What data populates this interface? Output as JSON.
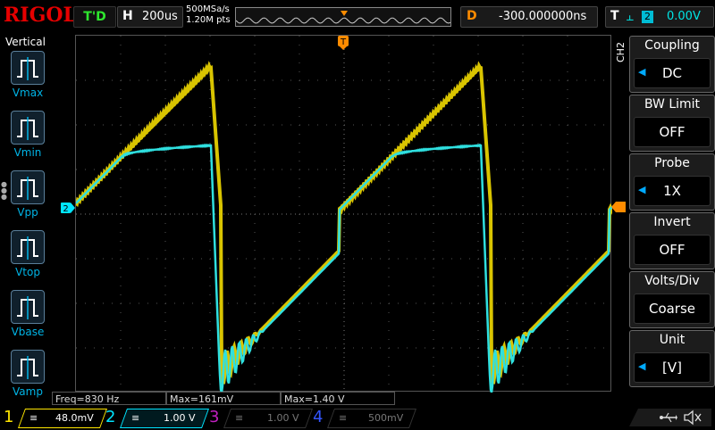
{
  "top": {
    "logo": "RIGOL",
    "trigger_status": "T'D",
    "horizontal_key": "H",
    "timebase": "200us",
    "sample_rate": "500MSa/s",
    "memory_depth": "1.20M pts",
    "delay_key": "D",
    "delay_value": "-300.000000ns",
    "trigger_key": "T",
    "trigger_edge": "⫠",
    "trigger_source": "2",
    "trigger_level": "0.00V"
  },
  "left": {
    "title": "Vertical",
    "items": [
      {
        "label": "Vmax",
        "icon": "vmax-icon"
      },
      {
        "label": "Vmin",
        "icon": "vmin-icon"
      },
      {
        "label": "Vpp",
        "icon": "vpp-icon"
      },
      {
        "label": "Vtop",
        "icon": "vtop-icon"
      },
      {
        "label": "Vbase",
        "icon": "vbase-icon"
      },
      {
        "label": "Vamp",
        "icon": "vamp-icon"
      }
    ]
  },
  "menu": {
    "channel": "CH2",
    "items": [
      {
        "title": "Coupling",
        "value": "DC",
        "arrow": true
      },
      {
        "title": "BW Limit",
        "value": "OFF",
        "arrow": false
      },
      {
        "title": "Probe",
        "value": "1X",
        "arrow": true
      },
      {
        "title": "Invert",
        "value": "OFF",
        "arrow": false
      },
      {
        "title": "Volts/Div",
        "value": "Coarse",
        "arrow": false
      },
      {
        "title": "Unit",
        "value": "[V]",
        "arrow": true
      }
    ]
  },
  "measurements": [
    "Freq=830 Hz",
    "Max=161mV",
    "Max=1.40 V"
  ],
  "channels": [
    {
      "num": "1",
      "scale": "48.0mV",
      "color": "#ffe600"
    },
    {
      "num": "2",
      "scale": "1.00 V",
      "color": "#00e5ff"
    },
    {
      "num": "3",
      "scale": "1.00 V",
      "color": "#c020c0"
    },
    {
      "num": "4",
      "scale": "500mV",
      "color": "#3355ff"
    }
  ],
  "marker_labels": {
    "ch2": "2",
    "trigger_pos": "T"
  },
  "colors": {
    "ch1": "#ffe600",
    "ch2": "#2fe0e0",
    "trigger": "#ff8c00",
    "menu_arrow": "#00aaff"
  }
}
